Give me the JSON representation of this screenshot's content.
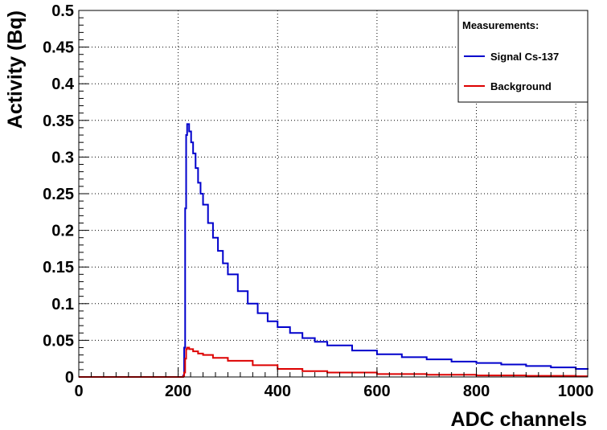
{
  "chart_data": {
    "type": "line",
    "step": true,
    "xlabel": "ADC channels",
    "ylabel": "Activity (Bq)",
    "xlim": [
      0,
      1024
    ],
    "ylim": [
      0,
      0.5
    ],
    "x_ticks": [
      0,
      200,
      400,
      600,
      800,
      1000
    ],
    "x_tick_labels": [
      "0",
      "200",
      "400",
      "600",
      "800",
      "1000"
    ],
    "y_ticks": [
      0,
      0.05,
      0.1,
      0.15,
      0.2,
      0.25,
      0.3,
      0.35,
      0.4,
      0.45,
      0.5
    ],
    "y_tick_labels": [
      "0",
      "0.05",
      "0.1",
      "0.15",
      "0.2",
      "0.25",
      "0.3",
      "0.35",
      "0.4",
      "0.45",
      "0.5"
    ],
    "grid": true,
    "legend": {
      "title": "Measurements:",
      "placement": "top-right"
    },
    "series": [
      {
        "name": "Signal Cs-137",
        "color": "#0000cc",
        "x": [
          0,
          205,
          210,
          212,
          214,
          216,
          218,
          220,
          222,
          226,
          230,
          235,
          240,
          245,
          250,
          260,
          270,
          280,
          290,
          300,
          320,
          340,
          360,
          380,
          400,
          425,
          450,
          475,
          500,
          550,
          600,
          650,
          700,
          750,
          800,
          850,
          900,
          950,
          1000,
          1024
        ],
        "values": [
          0,
          0,
          0.002,
          0.04,
          0.23,
          0.33,
          0.345,
          0.345,
          0.335,
          0.32,
          0.305,
          0.285,
          0.265,
          0.25,
          0.235,
          0.21,
          0.19,
          0.172,
          0.155,
          0.14,
          0.117,
          0.1,
          0.087,
          0.076,
          0.068,
          0.06,
          0.053,
          0.048,
          0.043,
          0.036,
          0.031,
          0.027,
          0.024,
          0.021,
          0.019,
          0.017,
          0.015,
          0.013,
          0.011,
          0.01
        ]
      },
      {
        "name": "Background",
        "color": "#dd0000",
        "x": [
          0,
          205,
          210,
          212,
          214,
          216,
          218,
          222,
          230,
          240,
          250,
          270,
          300,
          350,
          400,
          450,
          500,
          600,
          700,
          800,
          900,
          1000,
          1024
        ],
        "values": [
          0,
          0,
          0.001,
          0.006,
          0.025,
          0.038,
          0.04,
          0.038,
          0.035,
          0.032,
          0.03,
          0.026,
          0.022,
          0.016,
          0.011,
          0.008,
          0.006,
          0.004,
          0.003,
          0.002,
          0.0015,
          0.001,
          0.001
        ]
      }
    ]
  }
}
